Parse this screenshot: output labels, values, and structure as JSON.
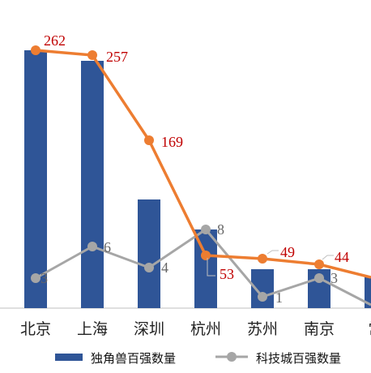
{
  "chart_data": {
    "type": "bar",
    "categories": [
      "北京",
      "上海",
      "深圳",
      "杭州",
      "苏州",
      "南京",
      "常"
    ],
    "series": [
      {
        "name": "独角兽百强数量",
        "kind": "bar",
        "color": "#2f5597",
        "values": [
          null,
          null,
          null,
          null,
          null,
          null,
          null
        ],
        "relative_heights_only": [
          318,
          305,
          134,
          97,
          48,
          48,
          38
        ]
      },
      {
        "name": "科技城百强数量",
        "kind": "line",
        "color": "#a6a6a6",
        "values": [
          3,
          6,
          4,
          8,
          1,
          3,
          null
        ],
        "labels": [
          "3",
          "6",
          "4",
          "8",
          "1",
          "3",
          ""
        ]
      },
      {
        "name": "",
        "kind": "line",
        "color": "#ed7d31",
        "values": [
          262,
          257,
          169,
          53,
          49,
          44,
          null
        ],
        "labels": [
          "262",
          "257",
          "169",
          "53",
          "49",
          "44",
          ""
        ]
      }
    ],
    "legend": {
      "position": "bottom",
      "entries": [
        "独角兽百强数量",
        "科技城百强数量"
      ]
    },
    "grid": false
  }
}
